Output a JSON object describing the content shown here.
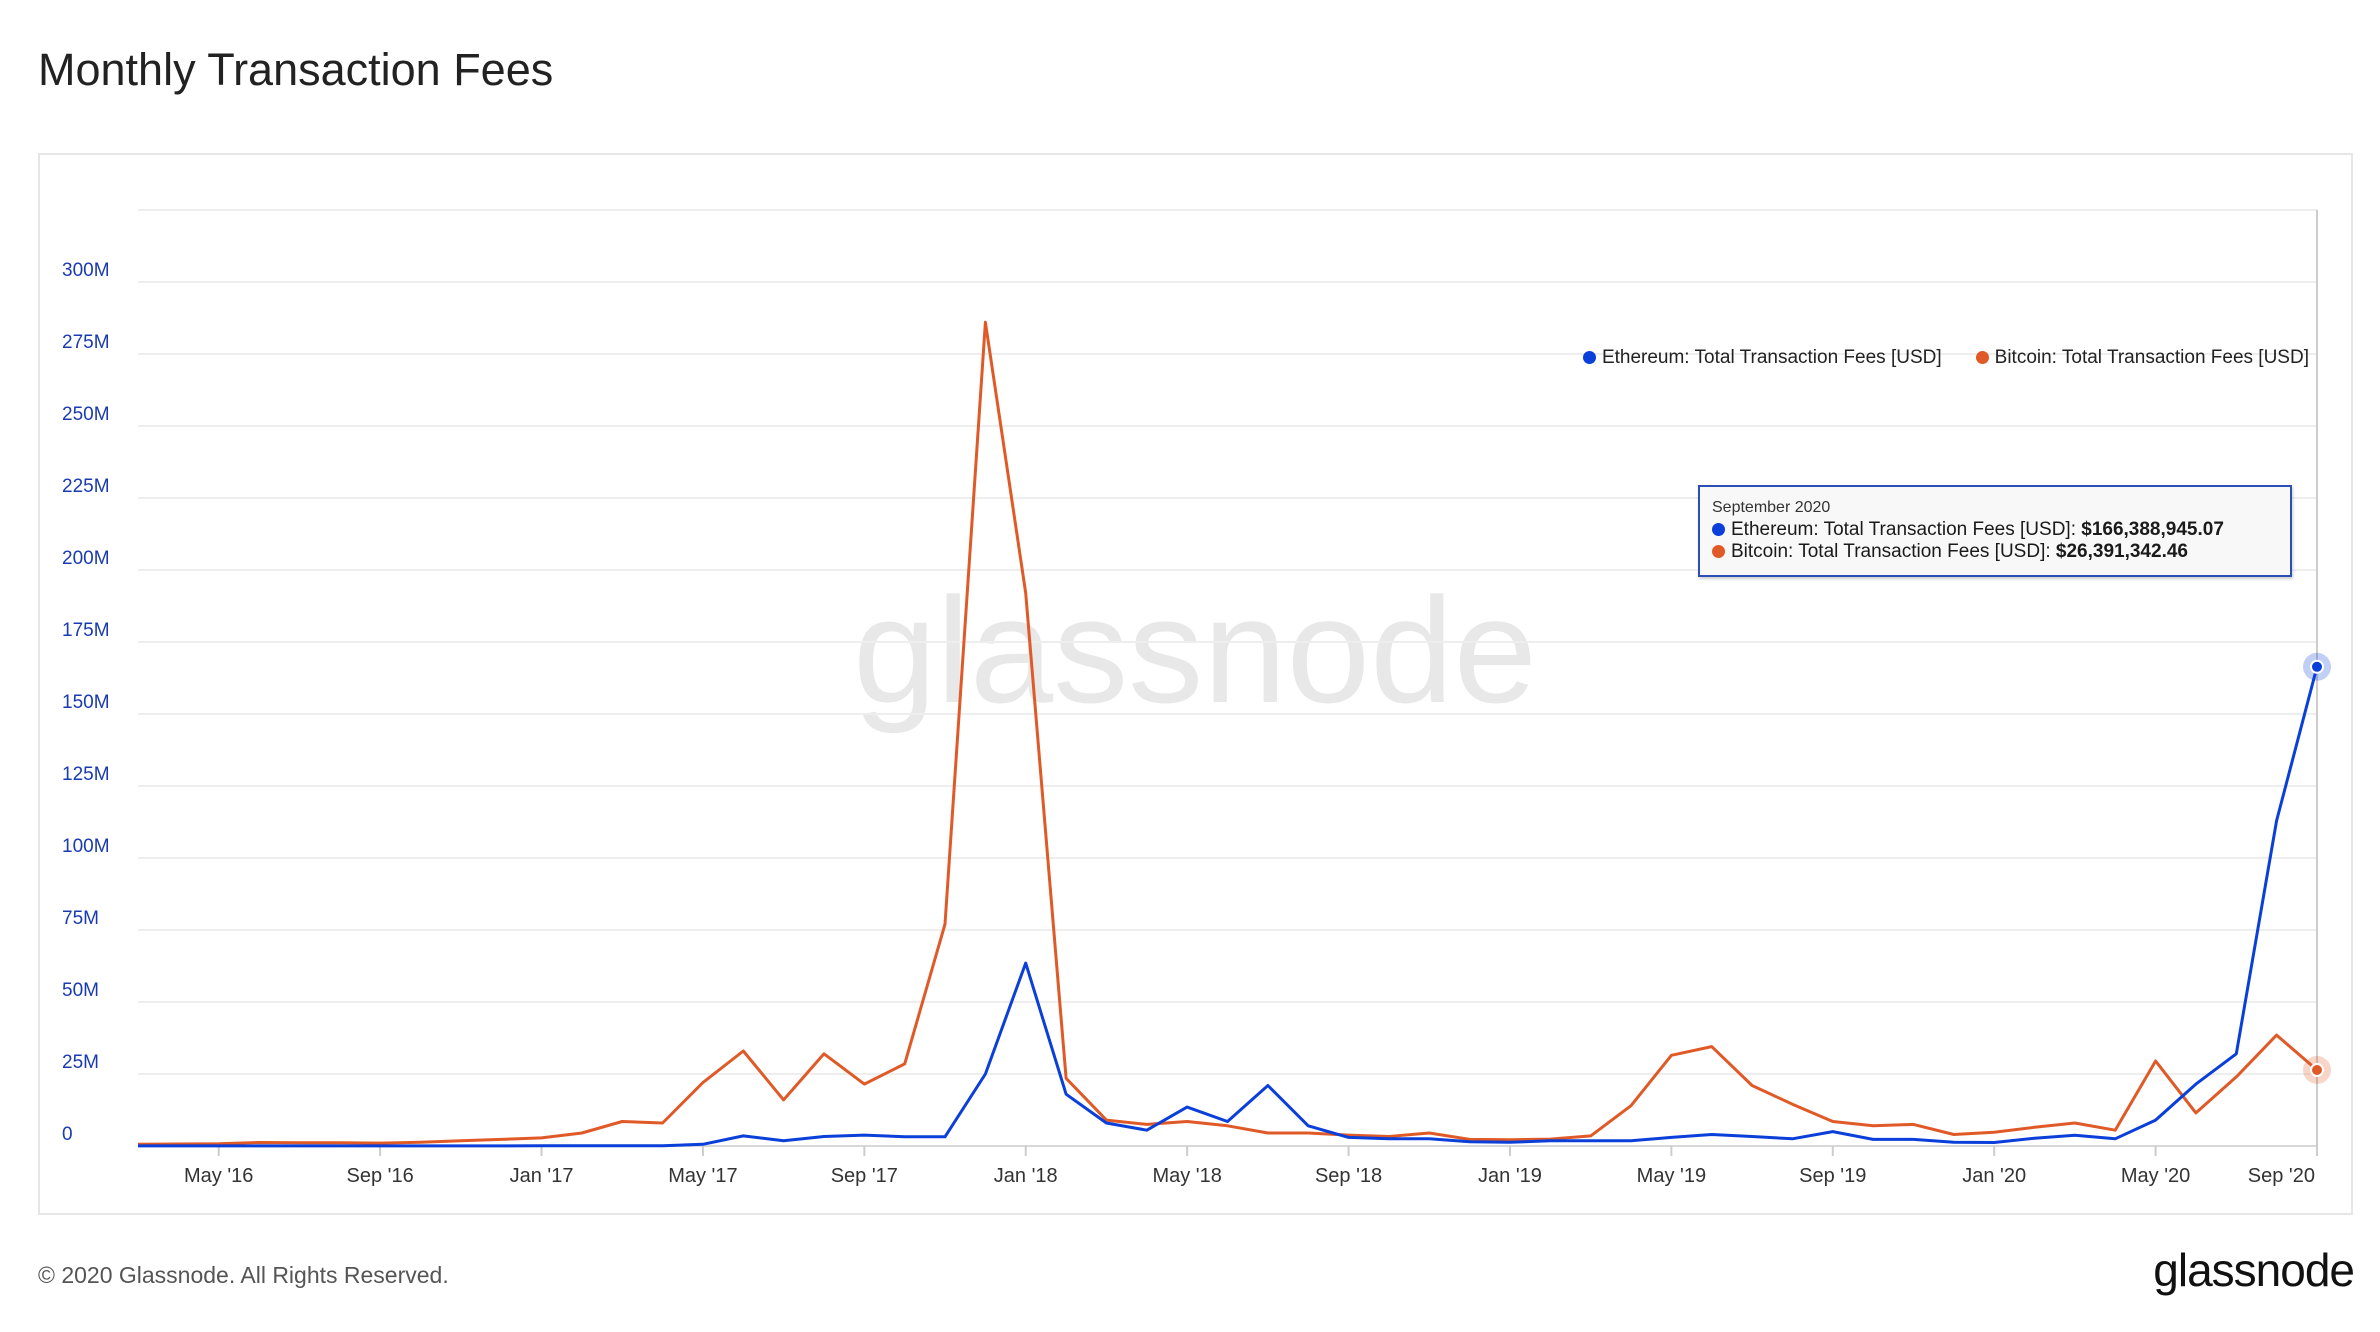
{
  "title": "Monthly Transaction Fees",
  "footer": "© 2020 Glassnode. All Rights Reserved.",
  "logo": "glassnode",
  "watermark": "glassnode",
  "tooltip": {
    "date": "September 2020",
    "rows": [
      {
        "label": "Ethereum: Total Transaction Fees [USD]:",
        "value": "$166,388,945.07"
      },
      {
        "label": "Bitcoin: Total Transaction Fees [USD]:",
        "value": "$26,391,342.46"
      }
    ]
  },
  "chart_data": {
    "type": "line",
    "title": "Monthly Transaction Fees",
    "xlabel": "",
    "ylabel": "",
    "ylim": [
      0,
      325
    ],
    "yunit": "M USD",
    "grid": true,
    "legend_position": "top-right",
    "start_month": "2016-03",
    "x_ticks": [
      {
        "label": "May '16",
        "index": 2
      },
      {
        "label": "Sep '16",
        "index": 6
      },
      {
        "label": "Jan '17",
        "index": 10
      },
      {
        "label": "May '17",
        "index": 14
      },
      {
        "label": "Sep '17",
        "index": 18
      },
      {
        "label": "Jan '18",
        "index": 22
      },
      {
        "label": "May '18",
        "index": 26
      },
      {
        "label": "Sep '18",
        "index": 30
      },
      {
        "label": "Jan '19",
        "index": 34
      },
      {
        "label": "May '19",
        "index": 38
      },
      {
        "label": "Sep '19",
        "index": 42
      },
      {
        "label": "Jan '20",
        "index": 46
      },
      {
        "label": "May '20",
        "index": 50
      },
      {
        "label": "Sep '20",
        "index": 54
      }
    ],
    "y_ticks": [
      {
        "label": "0",
        "value": 0
      },
      {
        "label": "25M",
        "value": 25
      },
      {
        "label": "50M",
        "value": 50
      },
      {
        "label": "75M",
        "value": 75
      },
      {
        "label": "100M",
        "value": 100
      },
      {
        "label": "125M",
        "value": 125
      },
      {
        "label": "150M",
        "value": 150
      },
      {
        "label": "175M",
        "value": 175
      },
      {
        "label": "200M",
        "value": 200
      },
      {
        "label": "225M",
        "value": 225
      },
      {
        "label": "250M",
        "value": 250
      },
      {
        "label": "275M",
        "value": 275
      },
      {
        "label": "300M",
        "value": 300
      }
    ],
    "series": [
      {
        "name": "Ethereum: Total Transaction Fees [USD]",
        "color": "#0b3fd9",
        "values": [
          0.05,
          0.05,
          0.05,
          0.05,
          0.05,
          0.05,
          0.05,
          0.05,
          0.05,
          0.05,
          0.1,
          0.1,
          0.1,
          0.1,
          0.6,
          3.5,
          1.8,
          3.3,
          3.8,
          3.2,
          3.2,
          25,
          63.5,
          18,
          8,
          5.5,
          13.5,
          8.5,
          21,
          7,
          3,
          2.5,
          2.5,
          1.5,
          1.3,
          1.8,
          1.8,
          1.8,
          3,
          4,
          3.3,
          2.5,
          5,
          2.3,
          2.3,
          1.3,
          1.2,
          2.7,
          3.7,
          2.5,
          9,
          21.5,
          32,
          113,
          166.39
        ]
      },
      {
        "name": "Bitcoin: Total Transaction Fees [USD]",
        "color": "#e05a27",
        "values": [
          0.6,
          0.7,
          0.8,
          1.2,
          1.1,
          1.1,
          1.0,
          1.3,
          1.8,
          2.3,
          2.8,
          4.5,
          8.5,
          8,
          22,
          33,
          16,
          32,
          21.5,
          28.5,
          77,
          286,
          192,
          23.5,
          9,
          7.5,
          8.5,
          7,
          4.5,
          4.5,
          3.8,
          3.3,
          4.5,
          2.3,
          2.2,
          2.4,
          3.5,
          14,
          31.5,
          34.5,
          21,
          14.5,
          8.5,
          7,
          7.5,
          4,
          4.8,
          6.5,
          8,
          5.5,
          29.5,
          11.5,
          24,
          38.5,
          26.39
        ]
      }
    ]
  }
}
